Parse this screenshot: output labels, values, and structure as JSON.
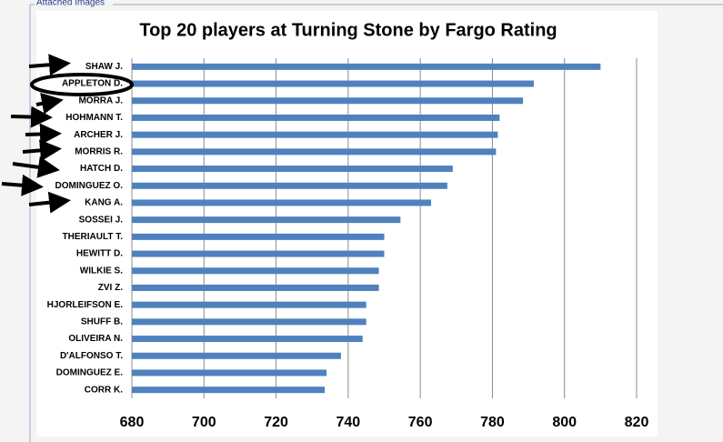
{
  "fieldset_legend": "Attached Images",
  "chart_data": {
    "type": "bar",
    "orientation": "horizontal",
    "title": "Top 20 players at Turning Stone by Fargo Rating",
    "categories": [
      "SHAW J.",
      "APPLETON D.",
      "MORRA J.",
      "HOHMANN T.",
      "ARCHER J.",
      "MORRIS R.",
      "HATCH D.",
      "DOMINGUEZ O.",
      "KANG A.",
      "SOSSEI J.",
      "THERIAULT T.",
      "HEWITT D.",
      "WILKIE S.",
      "ZVI Z.",
      "HJORLEIFSON E.",
      "SHUFF B.",
      "OLIVEIRA N.",
      "D'ALFONSO T.",
      "DOMINGUEZ E.",
      "CORR K."
    ],
    "values": [
      810,
      791.5,
      788.5,
      782,
      781.5,
      781,
      769,
      767.5,
      763,
      754.5,
      750,
      750,
      748.5,
      748.5,
      745,
      745,
      744,
      738,
      734,
      733.5
    ],
    "color": "#4f81bd",
    "xlim": [
      680,
      820
    ],
    "xticks": [
      680,
      700,
      720,
      740,
      760,
      780,
      800,
      820
    ],
    "grid": true
  }
}
